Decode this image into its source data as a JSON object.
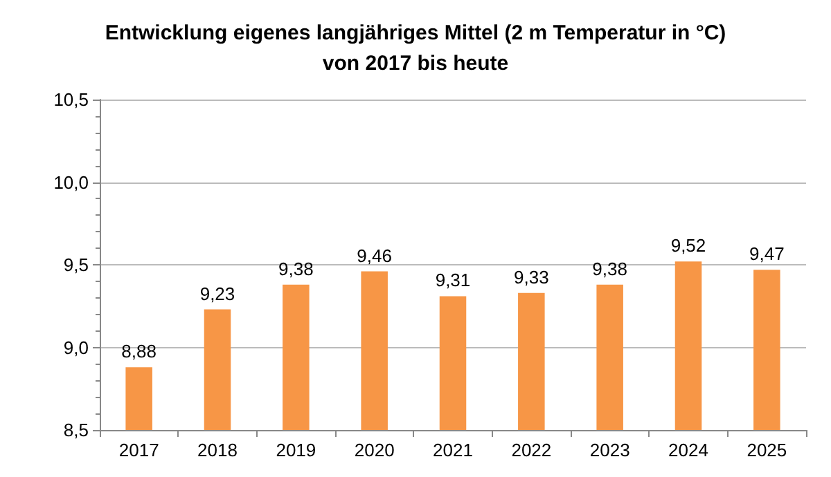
{
  "chart_data": {
    "type": "bar",
    "title": "Entwicklung eigenes langjähriges Mittel (2 m Temperatur in °C)\nvon 2017 bis heute",
    "categories": [
      "2017",
      "2018",
      "2019",
      "2020",
      "2021",
      "2022",
      "2023",
      "2024",
      "2025"
    ],
    "values": [
      8.88,
      9.23,
      9.38,
      9.46,
      9.31,
      9.33,
      9.38,
      9.52,
      9.47
    ],
    "value_labels": [
      "8,88",
      "9,23",
      "9,38",
      "9,46",
      "9,31",
      "9,33",
      "9,38",
      "9,52",
      "9,47"
    ],
    "color": "#f79646",
    "ylim": [
      8.5,
      10.5
    ],
    "yticks": [
      {
        "value": 8.5,
        "label": "8,5"
      },
      {
        "value": 9,
        "label": "9,0"
      },
      {
        "value": 9.5,
        "label": "9,5"
      },
      {
        "value": 10,
        "label": "10,0"
      },
      {
        "value": 10.5,
        "label": "10,5"
      }
    ],
    "grid": "y"
  }
}
